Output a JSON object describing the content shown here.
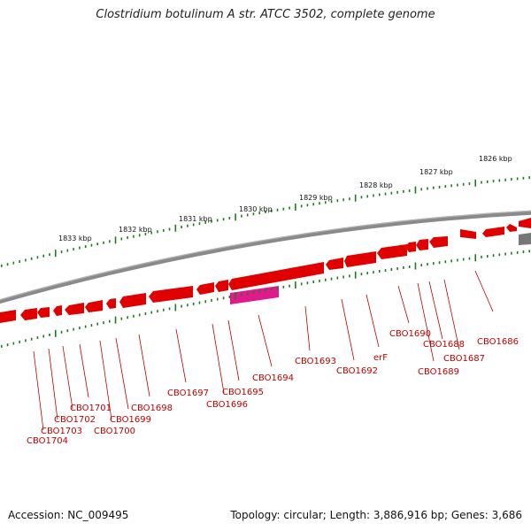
{
  "title": "Clostridium botulinum A str. ATCC 3502, complete genome",
  "footer": {
    "accession": "Accession: NC_009495",
    "info": "Topology: circular; Length: 3,886,916 bp; Genes: 3,686"
  },
  "colors": {
    "backbone": "#8a8a8a",
    "gene": "#e00000",
    "gene_highlight": "#e0198c",
    "tick": "#1f7a1f",
    "label": "#c00000"
  },
  "scale_labels": [
    "1826 kbp",
    "1827 kbp",
    "1828 kbp",
    "1829 kbp",
    "1830 kbp",
    "1831 kbp",
    "1832 kbp",
    "1833 kbp"
  ],
  "gene_labels": [
    "CBO1686",
    "CBO1687",
    "CBO1688",
    "CBO1689",
    "CBO1690",
    "erF",
    "CBO1692",
    "CBO1693",
    "CBO1694",
    "CBO1695",
    "CBO1696",
    "CBO1697",
    "CBO1698",
    "CBO1699",
    "CBO1700",
    "CBO1701",
    "CBO1702",
    "CBO1703",
    "CBO1704"
  ]
}
